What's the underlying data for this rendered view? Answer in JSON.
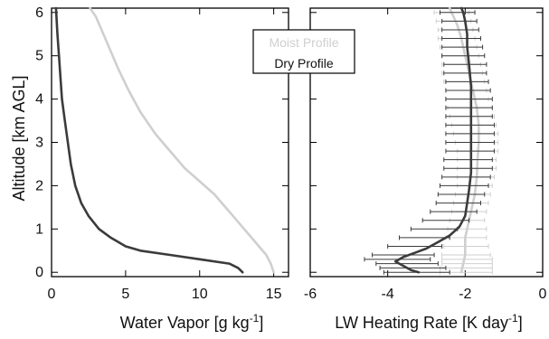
{
  "colors": {
    "moist": "#cfcfcf",
    "dry": "#3b3b3b",
    "axis": "#000000"
  },
  "chart_data": [
    {
      "type": "line",
      "ylabel": "Altitude [km AGL]",
      "xlabel": "Water Vapor [g kg",
      "xlabel_sup": "-1",
      "xlabel_end": "]",
      "xlim": [
        0,
        16
      ],
      "ylim": [
        -0.1,
        6.1
      ],
      "xticks": [
        "0",
        "5",
        "10",
        "15"
      ],
      "yticks": [
        "0",
        "1",
        "2",
        "3",
        "4",
        "5",
        "6"
      ],
      "series": [
        {
          "name": "Moist Profile",
          "x": [
            15.0,
            14.8,
            14.5,
            14.0,
            13.5,
            13.0,
            12.5,
            12.0,
            11.5,
            11.0,
            10.0,
            9.0,
            8.0,
            7.0,
            6.0,
            5.2,
            4.5,
            4.0,
            3.5,
            3.0,
            2.6
          ],
          "y": [
            0.0,
            0.2,
            0.4,
            0.6,
            0.8,
            1.0,
            1.2,
            1.4,
            1.6,
            1.8,
            2.1,
            2.4,
            2.8,
            3.2,
            3.7,
            4.2,
            4.7,
            5.1,
            5.5,
            5.9,
            6.1
          ]
        },
        {
          "name": "Dry Profile",
          "x": [
            12.9,
            12.6,
            12.0,
            10.0,
            8.0,
            6.0,
            5.0,
            4.0,
            3.2,
            2.5,
            2.0,
            1.6,
            1.3,
            1.1,
            0.9,
            0.7,
            0.5,
            0.4,
            0.3
          ],
          "y": [
            0.0,
            0.1,
            0.2,
            0.3,
            0.4,
            0.5,
            0.6,
            0.8,
            1.0,
            1.3,
            1.6,
            2.0,
            2.5,
            3.0,
            3.5,
            4.0,
            5.0,
            5.5,
            6.1
          ]
        }
      ]
    },
    {
      "type": "line",
      "xlabel": "LW Heating Rate [K day",
      "xlabel_sup": "-1",
      "xlabel_end": "]",
      "xlim": [
        -6,
        0
      ],
      "ylim": [
        -0.1,
        6.1
      ],
      "xticks": [
        "-6",
        "-4",
        "-2",
        "0"
      ],
      "legend": {
        "position": "top-left",
        "entries": [
          "Moist Profile",
          "Dry Profile"
        ]
      },
      "series": [
        {
          "name": "Moist Profile",
          "x": [
            -2.1,
            -2.05,
            -2.0,
            -2.0,
            -2.0,
            -1.95,
            -1.9,
            -1.85,
            -1.8,
            -1.75,
            -1.7,
            -1.68,
            -1.65,
            -1.65,
            -1.7,
            -1.8,
            -1.9,
            -2.0,
            -2.1,
            -2.2,
            -2.3,
            -2.35,
            -2.4
          ],
          "y": [
            0.0,
            0.2,
            0.4,
            0.6,
            0.8,
            1.0,
            1.2,
            1.4,
            1.6,
            1.8,
            2.2,
            2.6,
            3.0,
            3.4,
            3.8,
            4.2,
            4.6,
            5.0,
            5.4,
            5.7,
            5.9,
            6.0,
            6.1
          ],
          "error_y": [
            0.0,
            0.1,
            0.2,
            0.3,
            0.4,
            0.6,
            0.8,
            1.0,
            1.2,
            1.4,
            1.6,
            1.8,
            2.0,
            2.2,
            2.4,
            2.6,
            2.8,
            3.0,
            3.2,
            3.4,
            3.6,
            3.8,
            4.0,
            4.2,
            4.4,
            4.6,
            4.8,
            5.0,
            5.2,
            5.4,
            5.6,
            5.8,
            6.0
          ],
          "error_lo": [
            -2.65,
            -2.65,
            -2.6,
            -2.6,
            -2.6,
            -2.55,
            -2.5,
            -2.45,
            -2.4,
            -2.35,
            -2.3,
            -2.25,
            -2.2,
            -2.2,
            -2.2,
            -2.2,
            -2.2,
            -2.25,
            -2.3,
            -2.35,
            -2.4,
            -2.45,
            -2.5,
            -2.5,
            -2.55,
            -2.6,
            -2.6,
            -2.6,
            -2.65,
            -2.7,
            -2.7,
            -2.75,
            -2.8
          ],
          "error_hi": [
            -1.3,
            -1.3,
            -1.3,
            -1.3,
            -1.35,
            -1.4,
            -1.45,
            -1.45,
            -1.5,
            -1.45,
            -1.4,
            -1.35,
            -1.3,
            -1.25,
            -1.2,
            -1.2,
            -1.15,
            -1.15,
            -1.15,
            -1.2,
            -1.25,
            -1.3,
            -1.4,
            -1.45,
            -1.5,
            -1.55,
            -1.6,
            -1.65,
            -1.7,
            -1.75,
            -1.8,
            -1.85,
            -1.9
          ]
        },
        {
          "name": "Dry Profile",
          "x": [
            -3.2,
            -3.4,
            -3.6,
            -3.8,
            -3.6,
            -3.3,
            -3.0,
            -2.7,
            -2.4,
            -2.15,
            -2.0,
            -1.95,
            -1.9,
            -1.85,
            -1.85,
            -1.85,
            -1.85,
            -1.85,
            -1.9,
            -1.95,
            -1.95,
            -2.0,
            -2.05,
            -2.1
          ],
          "y": [
            0.0,
            0.05,
            0.15,
            0.25,
            0.35,
            0.45,
            0.55,
            0.7,
            0.85,
            1.05,
            1.3,
            1.6,
            1.9,
            2.3,
            2.8,
            3.3,
            3.8,
            4.3,
            4.8,
            5.2,
            5.5,
            5.8,
            6.0,
            6.1
          ],
          "error_y": [
            0.0,
            0.1,
            0.2,
            0.3,
            0.4,
            0.6,
            0.8,
            1.0,
            1.2,
            1.4,
            1.6,
            1.8,
            2.0,
            2.2,
            2.4,
            2.6,
            2.8,
            3.0,
            3.2,
            3.4,
            3.6,
            3.8,
            4.0,
            4.2,
            4.4,
            4.6,
            4.8,
            5.0,
            5.2,
            5.4,
            5.6,
            5.8,
            6.0
          ],
          "error_lo": [
            -4.1,
            -4.2,
            -4.3,
            -4.6,
            -4.4,
            -4.0,
            -3.7,
            -3.4,
            -3.1,
            -2.9,
            -2.75,
            -2.7,
            -2.65,
            -2.6,
            -2.55,
            -2.55,
            -2.5,
            -2.5,
            -2.5,
            -2.5,
            -2.5,
            -2.5,
            -2.5,
            -2.5,
            -2.5,
            -2.55,
            -2.55,
            -2.6,
            -2.6,
            -2.6,
            -2.6,
            -2.6,
            -2.65
          ],
          "error_hi": [
            -2.4,
            -2.5,
            -2.7,
            -2.9,
            -2.8,
            -2.6,
            -2.4,
            -2.2,
            -1.9,
            -1.7,
            -1.6,
            -1.5,
            -1.4,
            -1.35,
            -1.3,
            -1.3,
            -1.25,
            -1.25,
            -1.25,
            -1.25,
            -1.3,
            -1.3,
            -1.3,
            -1.35,
            -1.4,
            -1.45,
            -1.45,
            -1.5,
            -1.55,
            -1.6,
            -1.65,
            -1.7,
            -1.75
          ]
        }
      ]
    }
  ]
}
